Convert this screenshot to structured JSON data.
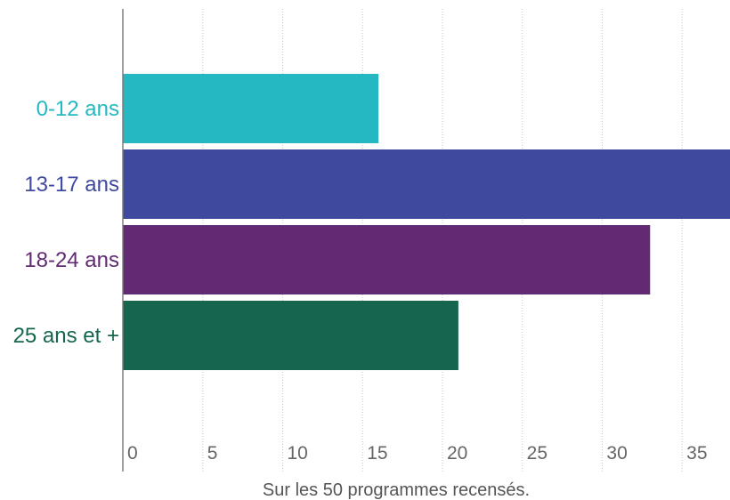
{
  "chart_data": {
    "type": "bar",
    "orientation": "horizontal",
    "categories": [
      "0-12 ans",
      "13-17 ans",
      "18-24 ans",
      "25 ans et +"
    ],
    "values": [
      16,
      38,
      33,
      21
    ],
    "colors": [
      "#25b8c2",
      "#3f4a9f",
      "#622a73",
      "#16664f"
    ],
    "xlabel": "Sur les 50 programmes recensés.",
    "ylabel": "",
    "xlim": [
      0,
      38
    ],
    "xticks": [
      0,
      5,
      10,
      15,
      20,
      25,
      30,
      35
    ],
    "grid": true,
    "legend": "none"
  }
}
